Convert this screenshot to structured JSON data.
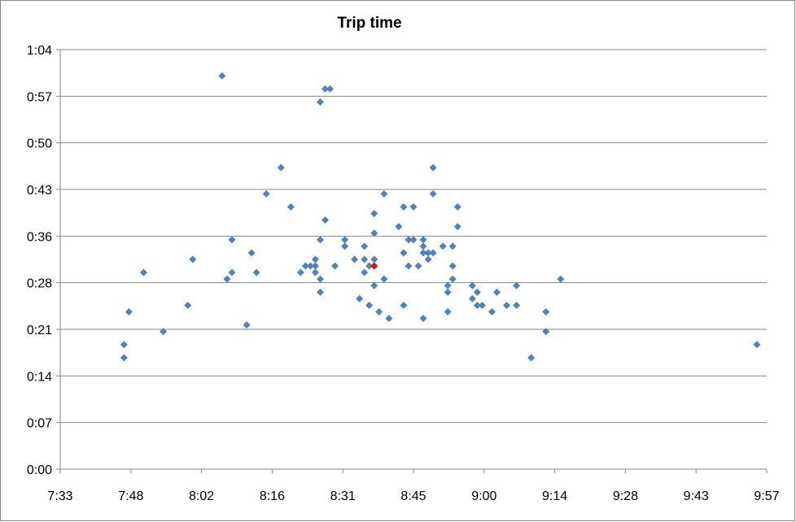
{
  "chart_data": {
    "type": "scatter",
    "title": "Trip time",
    "xlabel": "",
    "ylabel": "",
    "x_unit": "time of day (h:mm)",
    "y_unit": "duration (h:mm)",
    "xlim": [
      "7:33",
      "9:57"
    ],
    "ylim": [
      "0:00",
      "1:04"
    ],
    "x_tick_labels": [
      "7:33",
      "7:48",
      "8:02",
      "8:16",
      "8:31",
      "8:45",
      "9:00",
      "9:14",
      "9:28",
      "9:43",
      "9:57"
    ],
    "y_tick_labels": [
      "0:00",
      "0:07",
      "0:14",
      "0:21",
      "0:28",
      "0:36",
      "0:43",
      "0:50",
      "0:57",
      "1:04"
    ],
    "grid": {
      "horizontal": true,
      "vertical": false
    },
    "legend": "none",
    "colors": {
      "points": "#4F81BD",
      "highlight": "#FF0000",
      "gridline": "#868686",
      "axis": "#868686",
      "border": "#868686"
    },
    "series": [
      {
        "points": [
          [
            "7:46",
            "0:17"
          ],
          [
            "7:46",
            "0:19"
          ],
          [
            "7:47",
            "0:24"
          ],
          [
            "7:50",
            "0:30"
          ],
          [
            "7:54",
            "0:21"
          ],
          [
            "7:59",
            "0:25"
          ],
          [
            "8:00",
            "0:32"
          ],
          [
            "8:06",
            "1:00"
          ],
          [
            "8:07",
            "0:29"
          ],
          [
            "8:08",
            "0:30"
          ],
          [
            "8:08",
            "0:35"
          ],
          [
            "8:11",
            "0:22"
          ],
          [
            "8:12",
            "0:33"
          ],
          [
            "8:13",
            "0:30"
          ],
          [
            "8:15",
            "0:42"
          ],
          [
            "8:18",
            "0:46"
          ],
          [
            "8:20",
            "0:40"
          ],
          [
            "8:22",
            "0:30"
          ],
          [
            "8:23",
            "0:31"
          ],
          [
            "8:24",
            "0:31"
          ],
          [
            "8:25",
            "0:30"
          ],
          [
            "8:25",
            "0:31"
          ],
          [
            "8:25",
            "0:32"
          ],
          [
            "8:26",
            "0:35"
          ],
          [
            "8:26",
            "0:27"
          ],
          [
            "8:26",
            "0:29"
          ],
          [
            "8:26",
            "0:56"
          ],
          [
            "8:27",
            "0:38"
          ],
          [
            "8:27",
            "0:58"
          ],
          [
            "8:28",
            "0:58"
          ],
          [
            "8:29",
            "0:31"
          ],
          [
            "8:31",
            "0:35"
          ],
          [
            "8:31",
            "0:34"
          ],
          [
            "8:33",
            "0:32"
          ],
          [
            "8:34",
            "0:26"
          ],
          [
            "8:35",
            "0:32"
          ],
          [
            "8:35",
            "0:34"
          ],
          [
            "8:35",
            "0:30"
          ],
          [
            "8:36",
            "0:25"
          ],
          [
            "8:36",
            "0:31"
          ],
          [
            "8:37",
            "0:32"
          ],
          [
            "8:37",
            "0:28"
          ],
          [
            "8:37",
            "0:36"
          ],
          [
            "8:37",
            "0:39"
          ],
          [
            "8:38",
            "0:24"
          ],
          [
            "8:39",
            "0:42"
          ],
          [
            "8:39",
            "0:29"
          ],
          [
            "8:40",
            "0:23"
          ],
          [
            "8:42",
            "0:37"
          ],
          [
            "8:43",
            "0:33"
          ],
          [
            "8:43",
            "0:40"
          ],
          [
            "8:43",
            "0:25"
          ],
          [
            "8:44",
            "0:35"
          ],
          [
            "8:44",
            "0:31"
          ],
          [
            "8:45",
            "0:35"
          ],
          [
            "8:45",
            "0:40"
          ],
          [
            "8:46",
            "0:31"
          ],
          [
            "8:47",
            "0:33"
          ],
          [
            "8:47",
            "0:34"
          ],
          [
            "8:47",
            "0:35"
          ],
          [
            "8:47",
            "0:23"
          ],
          [
            "8:48",
            "0:32"
          ],
          [
            "8:48",
            "0:33"
          ],
          [
            "8:49",
            "0:33"
          ],
          [
            "8:49",
            "0:46"
          ],
          [
            "8:49",
            "0:42"
          ],
          [
            "8:51",
            "0:34"
          ],
          [
            "8:52",
            "0:27"
          ],
          [
            "8:52",
            "0:24"
          ],
          [
            "8:52",
            "0:28"
          ],
          [
            "8:53",
            "0:31"
          ],
          [
            "8:53",
            "0:29"
          ],
          [
            "8:53",
            "0:34"
          ],
          [
            "8:54",
            "0:40"
          ],
          [
            "8:54",
            "0:37"
          ],
          [
            "8:57",
            "0:28"
          ],
          [
            "8:57",
            "0:26"
          ],
          [
            "8:58",
            "0:25"
          ],
          [
            "8:58",
            "0:27"
          ],
          [
            "8:59",
            "0:25"
          ],
          [
            "9:01",
            "0:24"
          ],
          [
            "9:02",
            "0:27"
          ],
          [
            "9:04",
            "0:25"
          ],
          [
            "9:06",
            "0:25"
          ],
          [
            "9:06",
            "0:28"
          ],
          [
            "9:09",
            "0:17"
          ],
          [
            "9:12",
            "0:24"
          ],
          [
            "9:12",
            "0:21"
          ],
          [
            "9:15",
            "0:29"
          ],
          [
            "9:55",
            "0:19"
          ]
        ]
      },
      {
        "points": [
          [
            "8:37",
            "0:31"
          ]
        ]
      }
    ]
  }
}
